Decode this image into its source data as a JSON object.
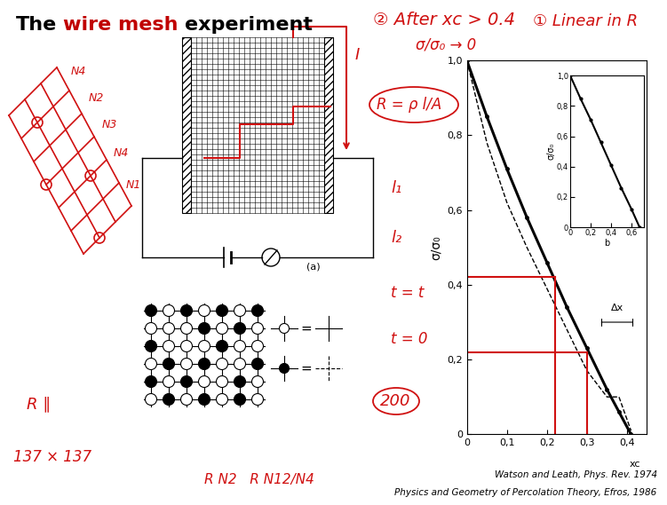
{
  "title": [
    {
      "text": "The",
      "color": "#000000"
    },
    {
      "text": "wire mesh",
      "color": "#c00000"
    },
    {
      "text": "experiment",
      "color": "#000000"
    }
  ],
  "mesh_caption": "(a)",
  "symbol_legend": [
    "=",
    "="
  ],
  "chart_data": {
    "type": "line",
    "ylabel": "σ/σ₀",
    "xlim": [
      0,
      0.45
    ],
    "ylim": [
      0,
      1.0
    ],
    "xticks": [
      0,
      {
        "value": 0.1,
        "label": "0,1"
      },
      {
        "value": 0.2,
        "label": "0,2"
      },
      {
        "value": 0.3,
        "label": "0,3"
      },
      {
        "value": 0.4,
        "label": "0,4"
      }
    ],
    "yticks": [
      0,
      {
        "value": 0.2,
        "label": "0,2"
      },
      {
        "value": 0.4,
        "label": "0,4"
      },
      {
        "value": 0.6,
        "label": "0,6"
      },
      {
        "value": 0.8,
        "label": "0,8"
      },
      {
        "value": 1.0,
        "label": "1,0"
      }
    ],
    "x": [
      0,
      0.05,
      0.1,
      0.15,
      0.2,
      0.25,
      0.3,
      0.35,
      0.38,
      0.41
    ],
    "series": [
      {
        "color": "#000000",
        "line_style": "solid",
        "marker": "dot",
        "values": [
          1.0,
          0.85,
          0.71,
          0.58,
          0.46,
          0.34,
          0.23,
          0.12,
          0.06,
          0.0
        ]
      },
      {
        "color": "#000000",
        "line_style": "dashed",
        "marker": "none",
        "values": [
          1.0,
          0.78,
          0.62,
          0.5,
          0.39,
          0.28,
          0.17,
          0.1,
          0.1,
          0.01
        ]
      }
    ],
    "delta_bracket": {
      "text": "Δx",
      "x": [
        0.33,
        0.42
      ],
      "y": 0.3
    },
    "xc_label": {
      "text": "xc",
      "x": 0.42,
      "y": 0
    },
    "guides": [
      [
        0.22,
        0.42
      ],
      [
        0.3,
        0.22
      ]
    ],
    "guide_color": "#d01010"
  },
  "inset": {
    "type": "line",
    "xlabel": "b",
    "ylabel": "σ/σ₀",
    "xlim": [
      0,
      0.72
    ],
    "ylim": [
      0,
      1.0
    ],
    "xticks": [
      0,
      {
        "value": 0.2,
        "label": "0,2"
      },
      {
        "value": 0.4,
        "label": "0,4"
      },
      {
        "value": 0.6,
        "label": "0,6"
      }
    ],
    "yticks": [
      0,
      {
        "value": 0.2,
        "label": "0,2"
      },
      {
        "value": 0.4,
        "label": "0,4"
      },
      {
        "value": 0.6,
        "label": "0,6"
      },
      {
        "value": 0.8,
        "label": "0,8"
      },
      {
        "value": 1.0,
        "label": "1,0"
      }
    ],
    "x": [
      0,
      0.1,
      0.2,
      0.3,
      0.4,
      0.5,
      0.6,
      0.68
    ],
    "values": [
      1.0,
      0.85,
      0.71,
      0.56,
      0.41,
      0.26,
      0.12,
      0.0
    ],
    "color": "#000000",
    "marker": "dot"
  },
  "citations": [
    "Watson and Leath, Phys. Rev. 1974",
    "Physics and Geometry of Percolation Theory, Efros, 1986"
  ],
  "annotations": [
    "② After xc > 0.4",
    "σ/σ₀ → 0",
    "① Linear in R",
    "I",
    "R = ρ l/A",
    "l₁",
    "l₂",
    "t = t",
    "t = 0",
    "200",
    "R ∥",
    "137 × 137",
    "N4",
    "N2",
    "N3",
    "N4",
    "N1",
    "R N2   R N12/N4"
  ]
}
